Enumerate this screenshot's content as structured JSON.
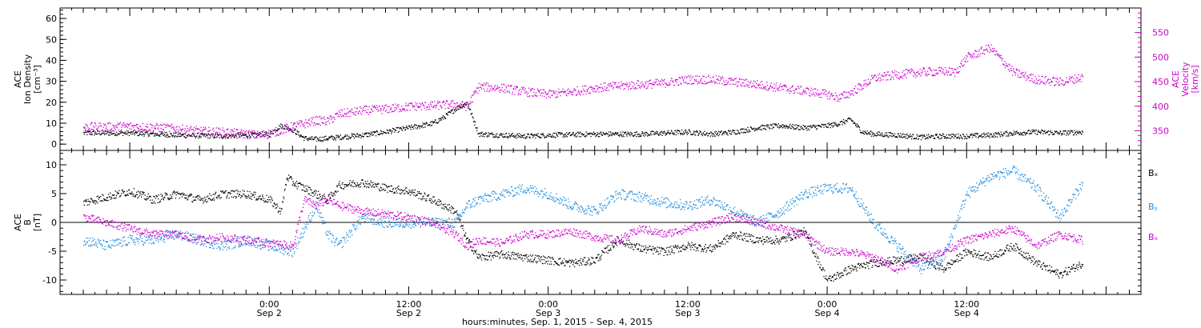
{
  "chart_data": [
    {
      "type": "scatter",
      "panel": "top",
      "ylabel_lines": [
        "ACE",
        "Ion Density",
        "[cm⁻³]"
      ],
      "y2label_lines": [
        "ACE",
        "Velocity",
        "[km/s]"
      ],
      "ylim": [
        -3,
        65
      ],
      "y_ticks": [
        "0",
        "10",
        "20",
        "30",
        "40",
        "50",
        "60"
      ],
      "y2lim": [
        310,
        600
      ],
      "y2_ticks": [
        "350",
        "400",
        "450",
        "500",
        "550"
      ],
      "colors": {
        "density": "#000000",
        "velocity": "#cc00cc"
      },
      "series": [
        {
          "key": "density",
          "x": [
            -16,
            -12,
            -8,
            -4,
            0,
            1,
            2,
            3,
            4,
            5,
            6,
            8,
            10,
            12,
            14,
            15,
            16,
            17,
            18,
            20,
            22,
            24,
            28,
            32,
            36,
            38,
            40,
            42,
            44,
            46,
            48,
            49,
            50,
            51,
            52,
            54,
            56,
            58,
            60,
            62,
            64,
            66,
            68,
            70
          ],
          "y": [
            5.5,
            5.5,
            4.5,
            4.0,
            5.0,
            9.0,
            7.0,
            3.0,
            2.5,
            3.0,
            3.5,
            4.5,
            6.0,
            8.0,
            10.0,
            13.0,
            17.0,
            20.0,
            5.0,
            4.5,
            4.0,
            4.5,
            5.0,
            5.0,
            6.0,
            5.0,
            6.0,
            8.0,
            9.0,
            8.0,
            9.0,
            10.0,
            12.0,
            6.0,
            5.0,
            4.5,
            3.5,
            4.0,
            4.0,
            4.5,
            5.5,
            6.0,
            5.5,
            6.0
          ]
        },
        {
          "key": "velocity",
          "x": [
            -16,
            -12,
            -8,
            -6,
            -4,
            -1,
            0,
            1,
            2,
            3,
            4,
            5,
            6,
            7,
            8,
            10,
            12,
            14,
            16,
            17,
            18,
            20,
            22,
            24,
            26,
            28,
            30,
            32,
            34,
            36,
            38,
            40,
            42,
            44,
            46,
            48,
            49,
            50,
            52,
            54,
            56,
            58,
            59,
            60,
            62,
            64,
            66,
            68,
            70
          ],
          "y": [
            358,
            360,
            355,
            350,
            348,
            342,
            345,
            352,
            360,
            365,
            372,
            370,
            385,
            388,
            392,
            395,
            400,
            402,
            405,
            400,
            440,
            438,
            430,
            425,
            430,
            438,
            442,
            445,
            448,
            455,
            455,
            450,
            445,
            438,
            432,
            425,
            418,
            428,
            458,
            465,
            470,
            472,
            470,
            500,
            520,
            470,
            455,
            450,
            460
          ]
        }
      ]
    },
    {
      "type": "scatter",
      "panel": "bottom",
      "ylabel_lines": [
        "ACE",
        "B",
        "[nT]"
      ],
      "ylim": [
        -12.5,
        12.5
      ],
      "y_ticks": [
        "-10",
        "-5",
        "0",
        "5",
        "10"
      ],
      "colors": {
        "bx": "#000000",
        "by": "#1a8be0",
        "bz": "#cc00cc"
      },
      "legend": [
        "Bₓ",
        "Bᵧ",
        "Bₓ"
      ],
      "legend_position": "right",
      "series": [
        {
          "key": "bx",
          "x": [
            -16,
            -14,
            -12,
            -10,
            -8,
            -6,
            -4,
            -2,
            0,
            1,
            1.5,
            2,
            3,
            4,
            5,
            6,
            8,
            10,
            12,
            14,
            16,
            17,
            18,
            20,
            22,
            24,
            26,
            28,
            30,
            32,
            34,
            36,
            38,
            40,
            42,
            44,
            46,
            48,
            50,
            52,
            54,
            56,
            58,
            60,
            62,
            64,
            66,
            68,
            70
          ],
          "y": [
            3.5,
            4.5,
            5.5,
            4.0,
            5.0,
            4.0,
            5.0,
            5.0,
            4.0,
            2.0,
            8.0,
            7.0,
            6.0,
            5.0,
            4.0,
            6.5,
            7.0,
            6.0,
            5.5,
            4.0,
            2.0,
            -3.0,
            -6.0,
            -5.5,
            -6.0,
            -6.5,
            -7.0,
            -6.5,
            -3.0,
            -4.5,
            -5.0,
            -4.0,
            -4.5,
            -2.0,
            -3.0,
            -3.0,
            -1.5,
            -10.0,
            -8.0,
            -7.0,
            -6.5,
            -6.0,
            -8.0,
            -5.0,
            -6.0,
            -4.0,
            -7.0,
            -9.0,
            -7.0
          ]
        },
        {
          "key": "by",
          "x": [
            -16,
            -14,
            -12,
            -10,
            -8,
            -6,
            -4,
            -2,
            0,
            2,
            4,
            5,
            6,
            8,
            10,
            12,
            14,
            16,
            17,
            18,
            20,
            22,
            24,
            26,
            28,
            30,
            32,
            34,
            36,
            38,
            40,
            42,
            44,
            46,
            48,
            50,
            52,
            54,
            56,
            58,
            60,
            62,
            64,
            66,
            68,
            70
          ],
          "y": [
            -3.0,
            -4.0,
            -3.0,
            -3.0,
            -2.0,
            -3.0,
            -4.0,
            -3.0,
            -4.0,
            -5.0,
            3.0,
            -2.0,
            -4.0,
            1.0,
            0.0,
            0.0,
            0.0,
            0.0,
            3.0,
            4.0,
            5.0,
            6.0,
            5.0,
            3.0,
            2.0,
            5.0,
            4.5,
            3.5,
            3.0,
            4.0,
            2.0,
            0.0,
            2.0,
            5.0,
            6.0,
            6.0,
            0.0,
            -4.0,
            -8.0,
            -6.0,
            5.0,
            8.0,
            9.0,
            6.0,
            1.0,
            7.0
          ]
        },
        {
          "key": "bz",
          "x": [
            -16,
            -14,
            -12,
            -10,
            -8,
            -6,
            -4,
            -2,
            0,
            2,
            3,
            4,
            5,
            6,
            8,
            10,
            12,
            14,
            16,
            17,
            18,
            20,
            22,
            24,
            26,
            28,
            30,
            32,
            34,
            36,
            38,
            40,
            42,
            44,
            46,
            48,
            50,
            52,
            54,
            56,
            58,
            60,
            62,
            64,
            66,
            68,
            70
          ],
          "y": [
            1.0,
            0.0,
            -1.0,
            -2.0,
            -2.0,
            -3.0,
            -2.5,
            -3.0,
            -3.5,
            -4.0,
            4.0,
            3.0,
            4.0,
            3.0,
            2.0,
            1.5,
            1.0,
            0.0,
            -2.0,
            -4.0,
            -3.0,
            -3.5,
            -2.0,
            -2.0,
            -1.5,
            -2.5,
            -3.0,
            -1.0,
            -2.0,
            -1.0,
            0.0,
            1.0,
            0.0,
            -1.0,
            -2.0,
            -5.0,
            -5.0,
            -6.0,
            -8.0,
            -6.0,
            -5.0,
            -3.0,
            -2.0,
            -1.0,
            -4.0,
            -2.0,
            -3.0
          ]
        }
      ]
    }
  ],
  "x_axis": {
    "xlim": [
      -18,
      75
    ],
    "ticks": [
      {
        "x": 0,
        "time": "0:00",
        "date": "Sep 2"
      },
      {
        "x": 12,
        "time": "12:00",
        "date": "Sep 2"
      },
      {
        "x": 24,
        "time": "0:00",
        "date": "Sep 3"
      },
      {
        "x": 36,
        "time": "12:00",
        "date": "Sep 3"
      },
      {
        "x": 48,
        "time": "0:00",
        "date": "Sep 4"
      },
      {
        "x": 60,
        "time": "12:00",
        "date": "Sep 4"
      }
    ],
    "xlabel": "hours:minutes, Sep.  1, 2015 – Sep.  4, 2015"
  }
}
